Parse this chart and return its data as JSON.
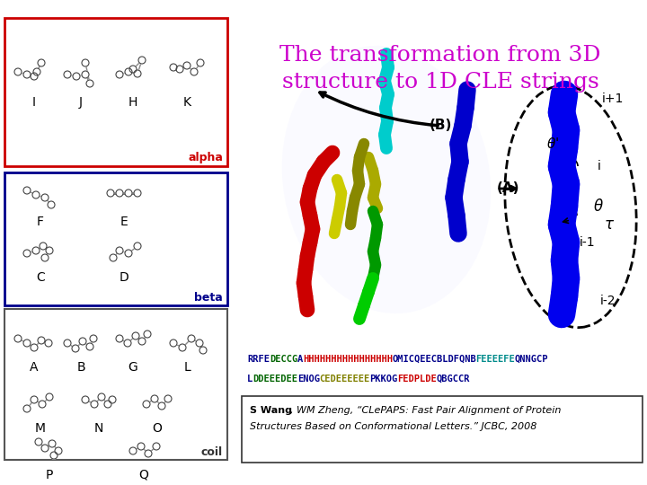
{
  "title_line1": "The transformation from 3D",
  "title_line2": "structure to 1D CLE strings",
  "title_color": "#cc00cc",
  "bg_color": "#ffffff",
  "alpha_label": "alpha",
  "beta_label": "beta",
  "coil_label": "coil",
  "citation_bold": "S Wang",
  "citation_rest": ", WM Zheng, “CLePAPS: Fast Pair Alignment of Protein\nStructures Based on Conformational Letters.” JCBC, 2008",
  "seq_line1_parts": [
    {
      "text": "RRFE",
      "color": "#00008B"
    },
    {
      "text": "DECCG",
      "color": "#006400"
    },
    {
      "text": "A",
      "color": "#00008B"
    },
    {
      "text": "HHHHHHHHHHHHHHHH",
      "color": "#cc0000"
    },
    {
      "text": "OMICQEECBLDFQNB",
      "color": "#00008B"
    },
    {
      "text": "FEEEEFE",
      "color": "#008B8B"
    },
    {
      "text": "QNNGCP",
      "color": "#00008B"
    }
  ],
  "seq_line2_parts": [
    {
      "text": "L",
      "color": "#00008B"
    },
    {
      "text": "DDEEEDEE",
      "color": "#006400"
    },
    {
      "text": "ENOG",
      "color": "#00008B"
    },
    {
      "text": "CEDEEEEEE",
      "color": "#808000"
    },
    {
      "text": "PKKOG",
      "color": "#00008B"
    },
    {
      "text": "FEDPLDE",
      "color": "#cc0000"
    },
    {
      "text": "QBGCCR",
      "color": "#00008B"
    }
  ]
}
